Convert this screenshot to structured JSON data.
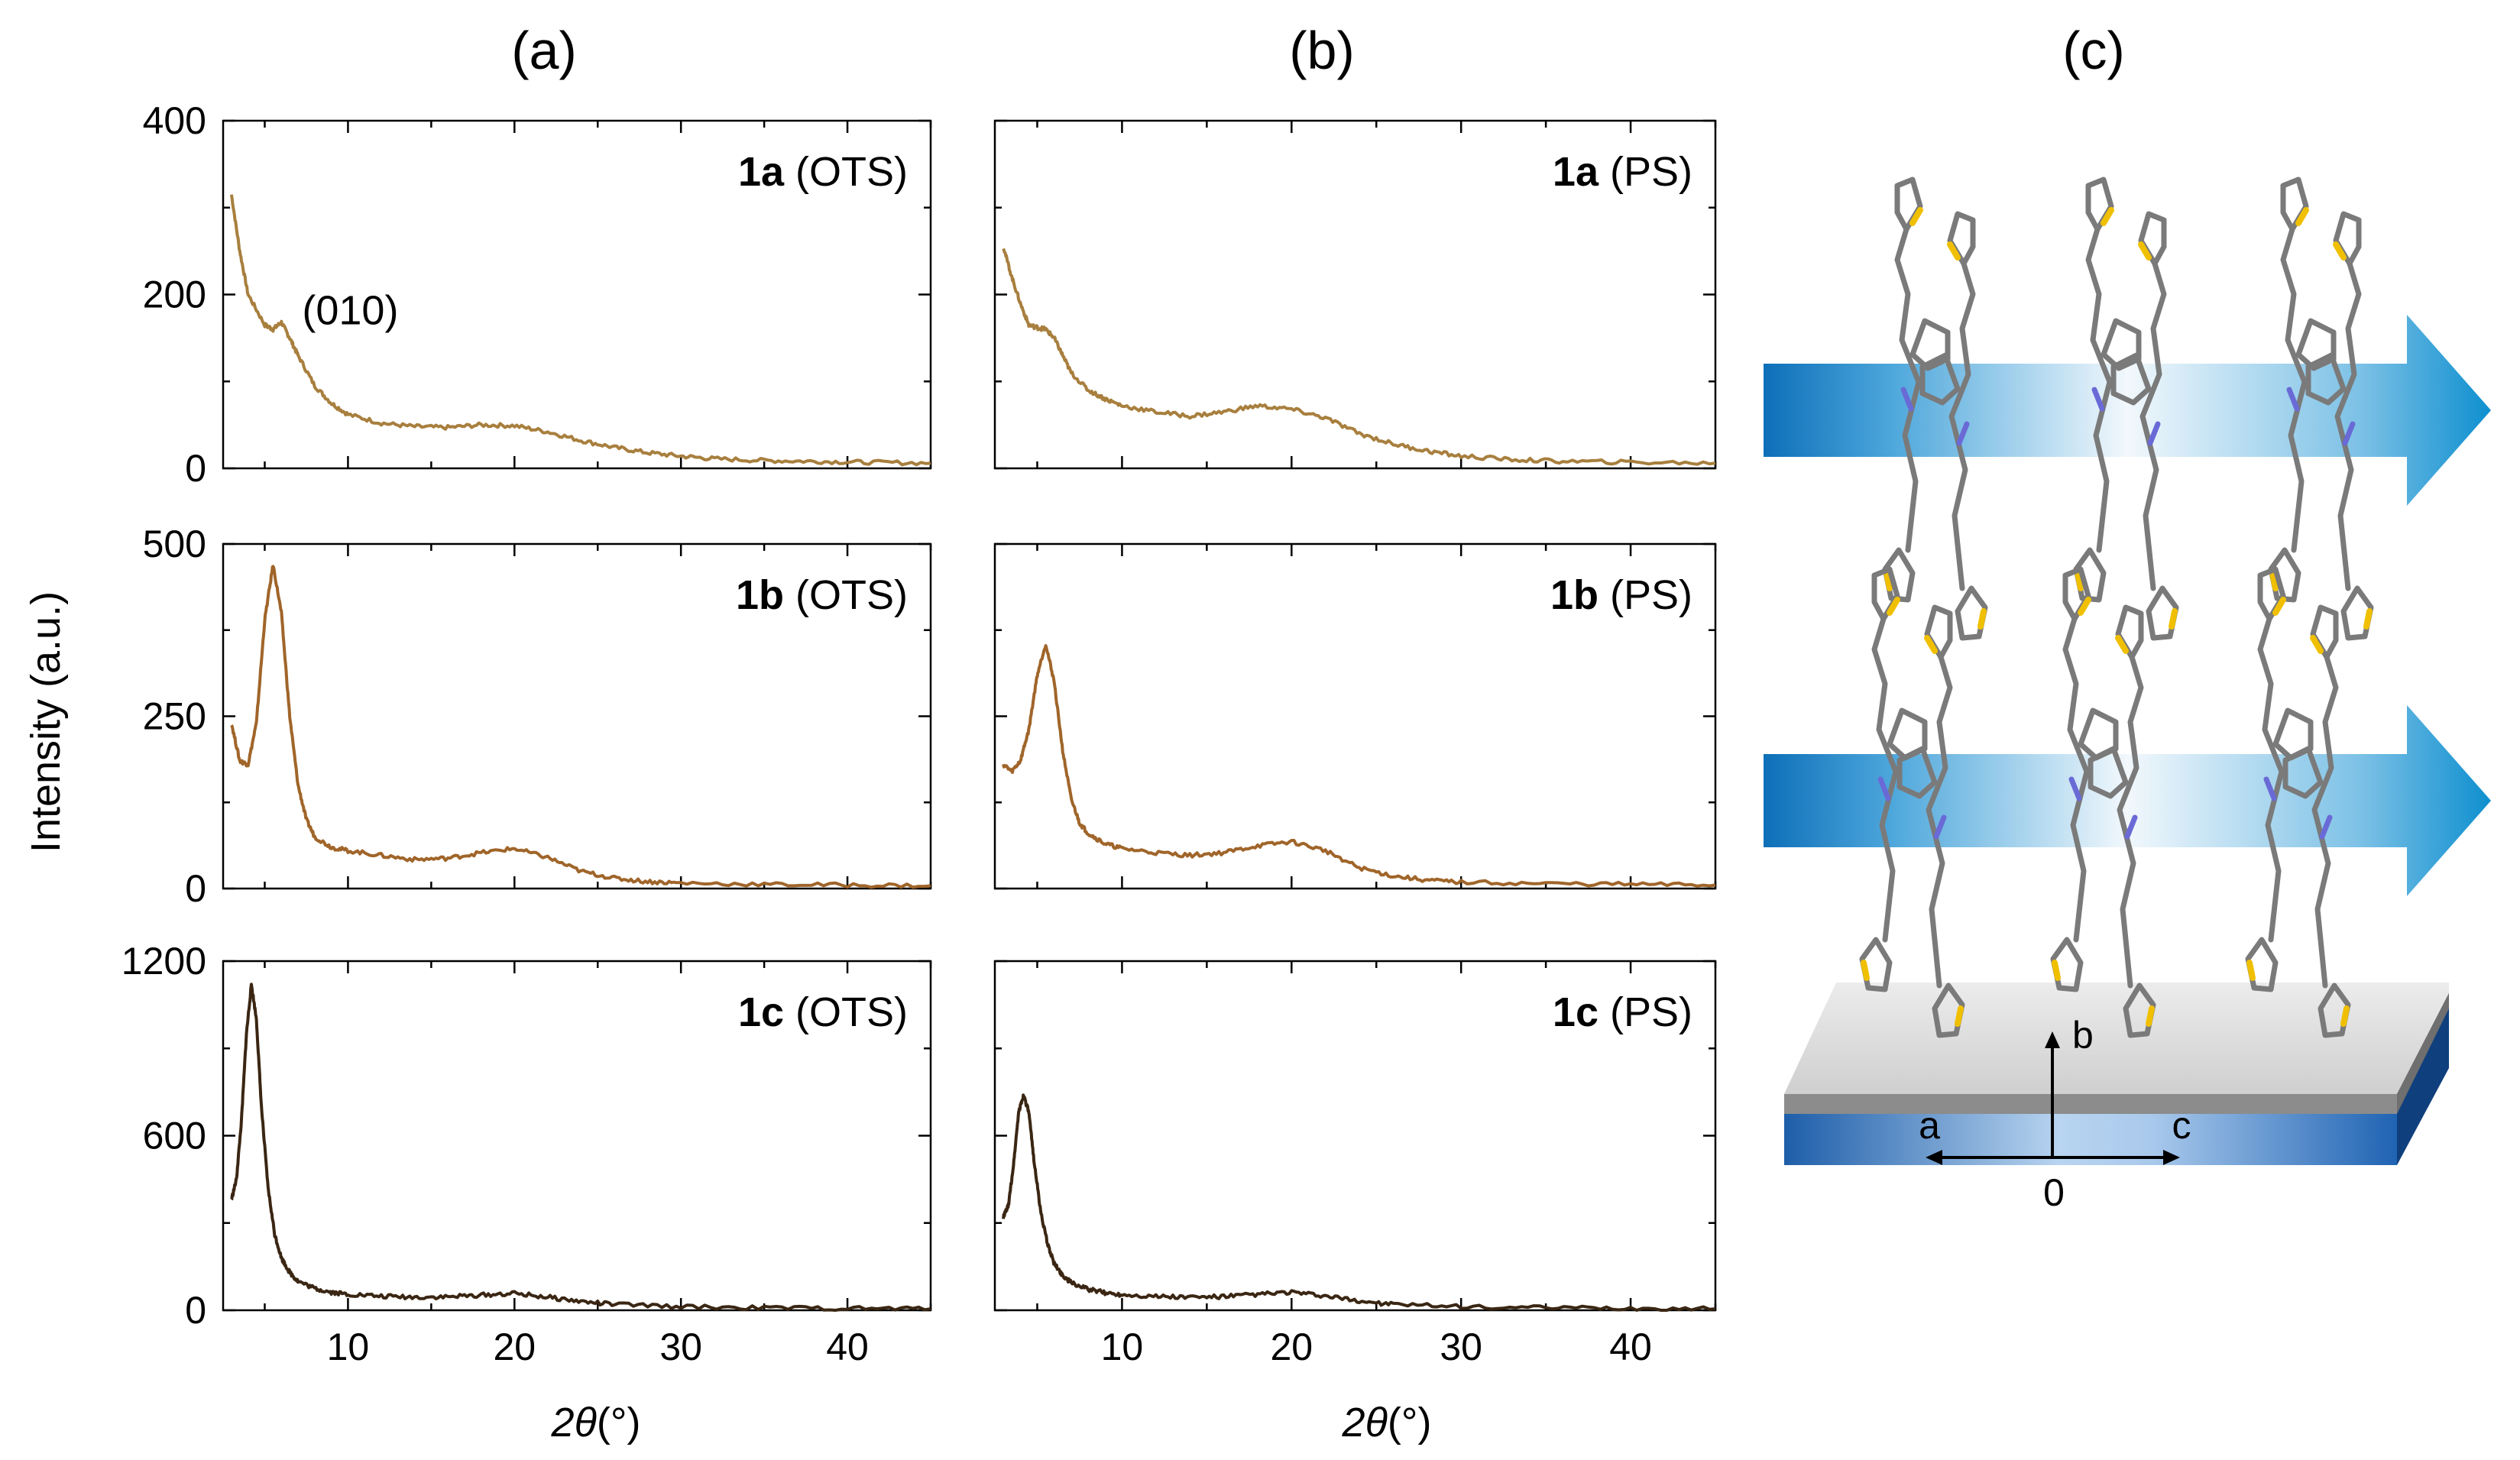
{
  "panel_labels": [
    "(a)",
    "(b)",
    "(c)"
  ],
  "y_axis_title": "Intensity (a.u.)",
  "x_axis_title": {
    "symbol": "2θ",
    "unit": "(°)"
  },
  "colors": {
    "film_1a": "#a87f3e",
    "film_1b": "#a0652a",
    "film_1c": "#3a2613",
    "arrow_blue": "#0e8fcf",
    "substrate_blue": "#1f63b3",
    "substrate_top": "#d9d9d9"
  },
  "chart_data": [
    {
      "type": "line",
      "panel": "(a)",
      "title": "",
      "sample": "1a",
      "substrate": "(OTS)",
      "xlabel": "2θ(°)",
      "ylabel": "Intensity (a.u.)",
      "xlim": [
        2.5,
        45
      ],
      "ylim": [
        0,
        400
      ],
      "yticks": [
        0,
        200,
        400
      ],
      "xticks": [
        10,
        20,
        30,
        40
      ],
      "color": "#a87f3e",
      "annotation": {
        "text": "(010)",
        "x": 5.5,
        "y": 170
      },
      "x": [
        3,
        3.5,
        4,
        5,
        5.5,
        6,
        6.5,
        7,
        8,
        9,
        10,
        12,
        14,
        16,
        18,
        20,
        22,
        24,
        26,
        28,
        30,
        32,
        35,
        38,
        41,
        45
      ],
      "y": [
        315,
        250,
        200,
        165,
        160,
        168,
        150,
        130,
        95,
        75,
        62,
        52,
        48,
        47,
        50,
        49,
        42,
        32,
        24,
        18,
        14,
        11,
        9,
        8,
        7,
        6
      ]
    },
    {
      "type": "line",
      "panel": "(a)",
      "title": "",
      "sample": "1b",
      "substrate": "(OTS)",
      "xlabel": "2θ(°)",
      "ylabel": "Intensity (a.u.)",
      "xlim": [
        2.5,
        45
      ],
      "ylim": [
        0,
        500
      ],
      "yticks": [
        0,
        250,
        500
      ],
      "xticks": [
        10,
        20,
        30,
        40
      ],
      "color": "#a0652a",
      "x": [
        3,
        3.5,
        4,
        4.5,
        5,
        5.5,
        6,
        6.5,
        7,
        7.5,
        8,
        9,
        10,
        12,
        14,
        16,
        18,
        20,
        22,
        24,
        26,
        28,
        30,
        35,
        40,
        45
      ],
      "y": [
        240,
        185,
        180,
        240,
        390,
        470,
        400,
        250,
        150,
        100,
        75,
        60,
        55,
        48,
        42,
        44,
        52,
        58,
        45,
        25,
        15,
        10,
        8,
        6,
        5,
        4
      ]
    },
    {
      "type": "line",
      "panel": "(a)",
      "title": "",
      "sample": "1c",
      "substrate": "(OTS)",
      "xlabel": "2θ(°)",
      "ylabel": "Intensity (a.u.)",
      "xlim": [
        2.5,
        45
      ],
      "ylim": [
        0,
        1200
      ],
      "yticks": [
        0,
        600,
        1200
      ],
      "xticks": [
        10,
        20,
        30,
        40
      ],
      "color": "#3a2613",
      "x": [
        3,
        3.3,
        3.6,
        3.9,
        4.2,
        4.5,
        4.8,
        5.2,
        5.6,
        6,
        6.5,
        7,
        8,
        9,
        10,
        12,
        14,
        16,
        18,
        20,
        22,
        24,
        26,
        30,
        35,
        40,
        45
      ],
      "y": [
        380,
        450,
        650,
        950,
        1120,
        1000,
        700,
        420,
        260,
        180,
        130,
        100,
        75,
        62,
        55,
        48,
        45,
        46,
        52,
        58,
        45,
        30,
        20,
        12,
        8,
        6,
        5
      ]
    },
    {
      "type": "line",
      "panel": "(b)",
      "title": "",
      "sample": "1a",
      "substrate": "(PS)",
      "xlabel": "2θ(°)",
      "ylabel": "",
      "xlim": [
        2.5,
        45
      ],
      "ylim": [
        0,
        400
      ],
      "yticks": [
        0,
        200,
        400
      ],
      "xticks": [
        10,
        20,
        30,
        40
      ],
      "color": "#a87f3e",
      "x": [
        3,
        3.5,
        4,
        4.5,
        5,
        5.5,
        6,
        6.5,
        7,
        8,
        9,
        10,
        12,
        14,
        16,
        18,
        20,
        22,
        24,
        26,
        28,
        30,
        33,
        36,
        40,
        45
      ],
      "y": [
        255,
        220,
        190,
        165,
        162,
        160,
        150,
        130,
        110,
        90,
        80,
        72,
        65,
        60,
        65,
        72,
        68,
        58,
        40,
        28,
        20,
        14,
        10,
        8,
        7,
        6
      ]
    },
    {
      "type": "line",
      "panel": "(b)",
      "title": "",
      "sample": "1b",
      "substrate": "(PS)",
      "xlabel": "2θ(°)",
      "ylabel": "",
      "xlim": [
        2.5,
        45
      ],
      "ylim": [
        0,
        500
      ],
      "yticks": [
        0,
        250,
        500
      ],
      "xticks": [
        10,
        20,
        30,
        40
      ],
      "color": "#a0652a",
      "x": [
        3,
        3.5,
        4,
        4.5,
        5,
        5.5,
        6,
        6.5,
        7,
        7.5,
        8,
        9,
        10,
        12,
        14,
        16,
        18,
        20,
        22,
        24,
        26,
        28,
        30,
        35,
        40,
        45
      ],
      "y": [
        180,
        170,
        185,
        230,
        310,
        355,
        300,
        200,
        130,
        95,
        80,
        65,
        58,
        52,
        48,
        52,
        62,
        68,
        55,
        30,
        18,
        12,
        9,
        7,
        6,
        5
      ]
    },
    {
      "type": "line",
      "panel": "(b)",
      "title": "",
      "sample": "1c",
      "substrate": "(PS)",
      "xlabel": "2θ(°)",
      "ylabel": "",
      "xlim": [
        2.5,
        45
      ],
      "ylim": [
        0,
        1200
      ],
      "yticks": [
        0,
        600,
        1200
      ],
      "xticks": [
        10,
        20,
        30,
        40
      ],
      "color": "#3a2613",
      "x": [
        3,
        3.3,
        3.6,
        3.9,
        4.2,
        4.5,
        4.8,
        5.2,
        5.6,
        6,
        6.5,
        7,
        8,
        9,
        10,
        12,
        14,
        16,
        18,
        20,
        22,
        24,
        26,
        30,
        35,
        40,
        45
      ],
      "y": [
        320,
        360,
        500,
        680,
        740,
        680,
        520,
        340,
        230,
        160,
        120,
        95,
        72,
        60,
        54,
        48,
        45,
        47,
        55,
        62,
        48,
        32,
        20,
        12,
        8,
        6,
        5
      ]
    }
  ],
  "schematic": {
    "axis_labels": {
      "a": "a",
      "b": "b",
      "c": "c",
      "origin": "0"
    }
  }
}
